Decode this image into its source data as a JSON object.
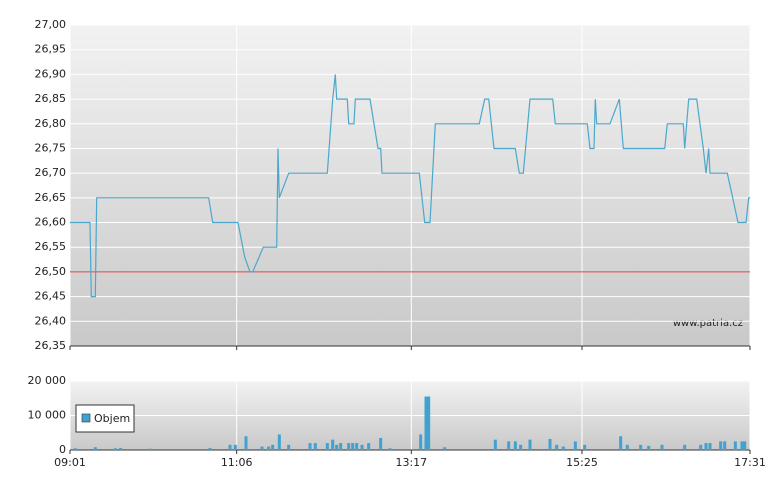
{
  "chart_data": [
    {
      "type": "line",
      "color": "#4aa8cc",
      "grid": true,
      "source": "www.patria.cz",
      "reference_line": {
        "value": 26.5,
        "color": "#e03c3c"
      },
      "xlim": [
        "09:01",
        "17:31"
      ],
      "xticks": [
        "09:01",
        "11:06",
        "13:17",
        "15:25",
        "17:31"
      ],
      "ylim": [
        26.35,
        27.0
      ],
      "yticks": [
        {
          "value": 26.35,
          "label": "26,35"
        },
        {
          "value": 26.4,
          "label": "26,40"
        },
        {
          "value": 26.45,
          "label": "26,45"
        },
        {
          "value": 26.5,
          "label": "26,50"
        },
        {
          "value": 26.55,
          "label": "26,55"
        },
        {
          "value": 26.6,
          "label": "26,60"
        },
        {
          "value": 26.65,
          "label": "26,65"
        },
        {
          "value": 26.7,
          "label": "26,70"
        },
        {
          "value": 26.75,
          "label": "26,75"
        },
        {
          "value": 26.8,
          "label": "26,80"
        },
        {
          "value": 26.85,
          "label": "26,85"
        },
        {
          "value": 26.9,
          "label": "26,90"
        },
        {
          "value": 26.95,
          "label": "26,95"
        },
        {
          "value": 27.0,
          "label": "27,00"
        }
      ],
      "x": [
        "09:01",
        "09:16",
        "09:17",
        "09:20",
        "09:21",
        "10:45",
        "10:48",
        "11:07",
        "11:12",
        "11:16",
        "11:18",
        "11:26",
        "11:36",
        "11:37",
        "11:38",
        "11:45",
        "12:14",
        "12:18",
        "12:20",
        "12:21",
        "12:29",
        "12:30",
        "12:34",
        "12:35",
        "12:46",
        "12:52",
        "12:54",
        "12:55",
        "13:23",
        "13:27",
        "13:31",
        "13:35",
        "14:08",
        "14:12",
        "14:15",
        "14:19",
        "14:35",
        "14:38",
        "14:41",
        "14:46",
        "15:03",
        "15:05",
        "15:29",
        "15:31",
        "15:34",
        "15:35",
        "15:36",
        "15:46",
        "15:53",
        "15:56",
        "16:27",
        "16:29",
        "16:41",
        "16:42",
        "16:45",
        "16:51",
        "16:56",
        "16:58",
        "17:00",
        "17:01",
        "17:14",
        "17:18",
        "17:22",
        "17:28",
        "17:30",
        "17:31"
      ],
      "values": [
        26.6,
        26.6,
        26.45,
        26.45,
        26.65,
        26.65,
        26.6,
        26.6,
        26.53,
        26.5,
        26.5,
        26.55,
        26.55,
        26.75,
        26.65,
        26.7,
        26.7,
        26.85,
        26.9,
        26.85,
        26.85,
        26.8,
        26.8,
        26.85,
        26.85,
        26.75,
        26.75,
        26.7,
        26.7,
        26.6,
        26.6,
        26.8,
        26.8,
        26.85,
        26.85,
        26.75,
        26.75,
        26.7,
        26.7,
        26.85,
        26.85,
        26.8,
        26.8,
        26.75,
        26.75,
        26.85,
        26.8,
        26.8,
        26.85,
        26.75,
        26.75,
        26.8,
        26.8,
        26.75,
        26.85,
        26.85,
        26.75,
        26.7,
        26.75,
        26.7,
        26.7,
        26.65,
        26.6,
        26.6,
        26.65,
        26.65
      ]
    },
    {
      "type": "bar",
      "grid": true,
      "legend": "lower-left",
      "xlim": [
        "09:01",
        "17:31"
      ],
      "xticks": [
        "09:01",
        "11:06",
        "13:17",
        "15:25",
        "17:31"
      ],
      "ylim": [
        0,
        20000
      ],
      "yticks": [
        0,
        {
          "value": 10000,
          "label": "10 000"
        },
        {
          "value": 20000,
          "label": "20 000"
        }
      ],
      "series": [
        {
          "name": "Objem",
          "color": "#3fa2d0",
          "x": [
            "09:05",
            "09:20",
            "09:35",
            "09:39",
            "10:01",
            "10:46",
            "11:01",
            "11:05",
            "11:13",
            "11:25",
            "11:30",
            "11:33",
            "11:38",
            "11:45",
            "12:01",
            "12:05",
            "12:14",
            "12:18",
            "12:21",
            "12:24",
            "12:30",
            "12:33",
            "12:36",
            "12:40",
            "12:45",
            "12:54",
            "13:01",
            "13:24",
            "13:28",
            "13:30",
            "13:42",
            "14:20",
            "14:30",
            "14:35",
            "14:39",
            "14:46",
            "15:01",
            "15:06",
            "15:11",
            "15:20",
            "15:27",
            "15:54",
            "15:59",
            "16:09",
            "16:15",
            "16:25",
            "16:42",
            "16:54",
            "16:58",
            "17:01",
            "17:09",
            "17:12",
            "17:20",
            "17:25",
            "17:27"
          ],
          "values": [
            500,
            800,
            500,
            600,
            400,
            600,
            1500,
            1500,
            4000,
            1000,
            1000,
            1500,
            4500,
            1500,
            2000,
            2000,
            2000,
            3000,
            1500,
            2000,
            2000,
            2000,
            2000,
            1500,
            2000,
            3500,
            500,
            4500,
            15500,
            15500,
            800,
            3000,
            2500,
            2500,
            1500,
            3000,
            3200,
            1500,
            1000,
            2500,
            1500,
            4000,
            1500,
            1500,
            1200,
            1500,
            1500,
            1500,
            2000,
            2000,
            2500,
            2500,
            2500,
            2500,
            2500
          ]
        }
      ]
    }
  ]
}
